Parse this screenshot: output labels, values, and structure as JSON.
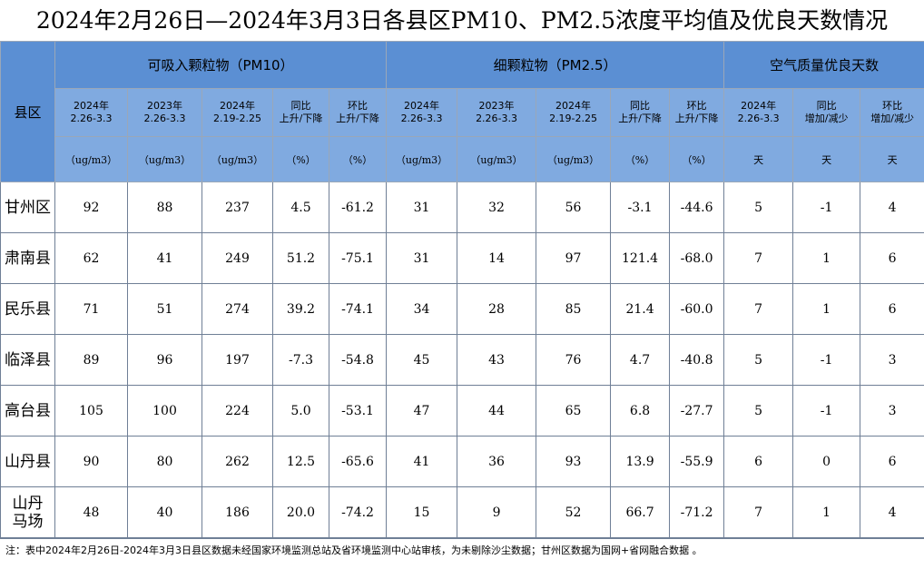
{
  "title": "2024年2月26日—2024年3月3日各县区PM10、PM2.5浓度平均值及优良天数情况",
  "header": {
    "region": "县区",
    "groups": [
      "可吸入颗粒物（PM10）",
      "细颗粒物（PM2.5）",
      "空气质量优良天数"
    ],
    "subheaders": [
      [
        "2024年",
        "2.26-3.3"
      ],
      [
        "2023年",
        "2.26-3.3"
      ],
      [
        "2024年",
        "2.19-2.25"
      ],
      [
        "同比",
        "上升/下降"
      ],
      [
        "环比",
        "上升/下降"
      ],
      [
        "2024年",
        "2.26-3.3"
      ],
      [
        "2023年",
        "2.26-3.3"
      ],
      [
        "2024年",
        "2.19-2.25"
      ],
      [
        "同比",
        "上升/下降"
      ],
      [
        "环比",
        "上升/下降"
      ],
      [
        "2024年",
        "2.26-3.3"
      ],
      [
        "同比",
        "增加/减少"
      ],
      [
        "环比",
        "增加/减少"
      ]
    ],
    "units": [
      "（ug/m3）",
      "（ug/m3）",
      "（ug/m3）",
      "（%）",
      "（%）",
      "（ug/m3）",
      "（ug/m3）",
      "（ug/m3）",
      "（%）",
      "（%）",
      "天",
      "天",
      "天"
    ]
  },
  "table": {
    "rows": [
      {
        "region": [
          "甘州区"
        ],
        "cells": [
          "92",
          "88",
          "237",
          "4.5",
          "-61.2",
          "31",
          "32",
          "56",
          "-3.1",
          "-44.6",
          "5",
          "-1",
          "4"
        ]
      },
      {
        "region": [
          "肃南县"
        ],
        "cells": [
          "62",
          "41",
          "249",
          "51.2",
          "-75.1",
          "31",
          "14",
          "97",
          "121.4",
          "-68.0",
          "7",
          "1",
          "6"
        ]
      },
      {
        "region": [
          "民乐县"
        ],
        "cells": [
          "71",
          "51",
          "274",
          "39.2",
          "-74.1",
          "34",
          "28",
          "85",
          "21.4",
          "-60.0",
          "7",
          "1",
          "6"
        ]
      },
      {
        "region": [
          "临泽县"
        ],
        "cells": [
          "89",
          "96",
          "197",
          "-7.3",
          "-54.8",
          "45",
          "43",
          "76",
          "4.7",
          "-40.8",
          "5",
          "-1",
          "3"
        ]
      },
      {
        "region": [
          "高台县"
        ],
        "cells": [
          "105",
          "100",
          "224",
          "5.0",
          "-53.1",
          "47",
          "44",
          "65",
          "6.8",
          "-27.7",
          "5",
          "-1",
          "3"
        ]
      },
      {
        "region": [
          "山丹县"
        ],
        "cells": [
          "90",
          "80",
          "262",
          "12.5",
          "-65.6",
          "41",
          "36",
          "93",
          "13.9",
          "-55.9",
          "6",
          "0",
          "6"
        ]
      },
      {
        "region": [
          "山丹",
          "马场"
        ],
        "cells": [
          "48",
          "40",
          "186",
          "20.0",
          "-74.2",
          "15",
          "9",
          "52",
          "66.7",
          "-71.2",
          "7",
          "1",
          "4"
        ]
      }
    ]
  },
  "note": "注：表中2024年2月26日-2024年3月3日县区数据未经国家环境监测总站及省环境监测中心站审核，为未剔除沙尘数据；甘州区数据为国网+省网融合数据 。"
}
